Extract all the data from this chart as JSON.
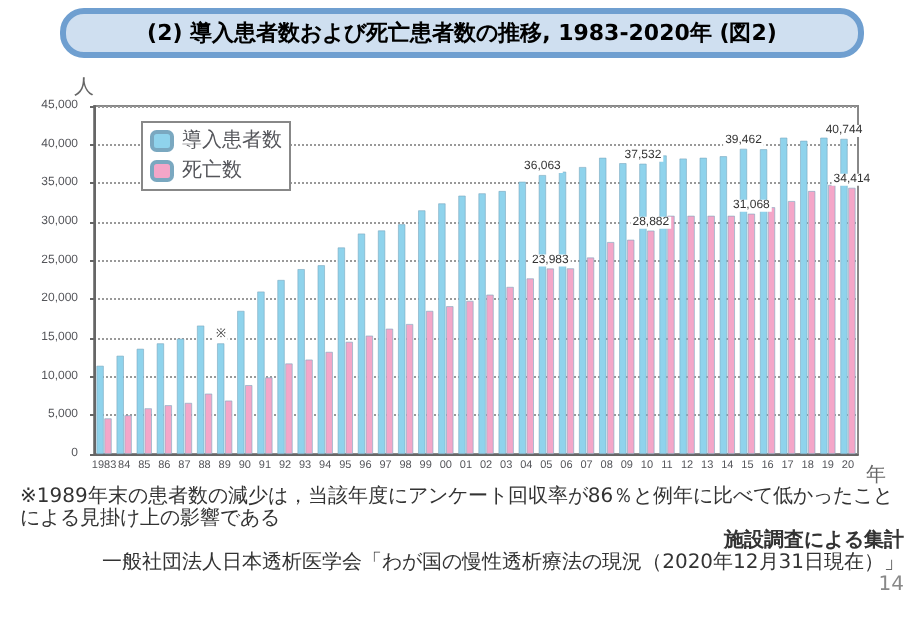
{
  "chart_data": {
    "type": "bar",
    "title": "(2) 導入患者数および死亡患者数の推移, 1983-2020年 (図2)",
    "xlabel": "年",
    "ylabel": "人",
    "categories": [
      "1983",
      "84",
      "85",
      "86",
      "87",
      "88",
      "89",
      "90",
      "91",
      "92",
      "93",
      "94",
      "95",
      "96",
      "97",
      "98",
      "99",
      "00",
      "01",
      "02",
      "03",
      "04",
      "05",
      "06",
      "07",
      "08",
      "09",
      "10",
      "11",
      "12",
      "13",
      "14",
      "15",
      "16",
      "17",
      "18",
      "19",
      "20"
    ],
    "series": [
      {
        "name": "導入患者数",
        "color": "#8fd3ec",
        "values": [
          11400,
          12700,
          13600,
          14300,
          14900,
          16600,
          14300,
          18500,
          21000,
          22500,
          23900,
          24400,
          26700,
          28500,
          28900,
          29700,
          31500,
          32400,
          33400,
          33700,
          34000,
          35200,
          36063,
          36500,
          37100,
          38300,
          37600,
          37532,
          38600,
          38200,
          38300,
          38500,
          39462,
          39400,
          40900,
          40500,
          40900,
          40744
        ],
        "value_labels": [
          null,
          null,
          null,
          null,
          null,
          null,
          "※",
          null,
          null,
          null,
          null,
          null,
          null,
          null,
          null,
          null,
          null,
          null,
          null,
          null,
          null,
          null,
          "36,063",
          null,
          null,
          null,
          null,
          "37,532",
          null,
          null,
          null,
          null,
          "39,462",
          null,
          null,
          null,
          null,
          "40,744"
        ]
      },
      {
        "name": "死亡数",
        "color": "#f4a6c8",
        "values": [
          4600,
          5000,
          5900,
          6300,
          6600,
          7800,
          6900,
          8900,
          9900,
          11700,
          12200,
          13200,
          14500,
          15300,
          16200,
          16800,
          18500,
          19100,
          19800,
          20600,
          21600,
          22700,
          23983,
          24000,
          25400,
          27400,
          27700,
          28882,
          30800,
          30800,
          30800,
          30800,
          31068,
          31900,
          32700,
          34000,
          34800,
          34414
        ],
        "value_labels": [
          null,
          null,
          null,
          null,
          null,
          null,
          null,
          null,
          null,
          null,
          null,
          null,
          null,
          null,
          null,
          null,
          null,
          null,
          null,
          null,
          null,
          null,
          "23,983",
          null,
          null,
          null,
          null,
          "28,882",
          null,
          null,
          null,
          null,
          "31,068",
          null,
          null,
          null,
          null,
          "34,414"
        ]
      }
    ],
    "ylim": [
      0,
      45000
    ],
    "yticks": [
      0,
      {
        "value": 5000,
        "label": "5,000"
      },
      {
        "value": 10000,
        "label": "10,000"
      },
      {
        "value": 15000,
        "label": "15,000"
      },
      {
        "value": 20000,
        "label": "20,000"
      },
      {
        "value": 25000,
        "label": "25,000"
      },
      {
        "value": 30000,
        "label": "30,000"
      },
      {
        "value": 35000,
        "label": "35,000"
      },
      {
        "value": 40000,
        "label": "40,000"
      },
      {
        "value": 45000,
        "label": "45,000"
      }
    ],
    "grid": "y",
    "legend": "top left",
    "annotations": [
      "※1989年末の患者数の減少は，当該年度にアンケート回収率が86％と例年に比べて低かったことによる見掛け上の影響である",
      "施設調査による集計",
      "一般社団法人日本透析医学会「わが国の慢性透析療法の現況（2020年12月31日現在）」",
      "14"
    ]
  }
}
